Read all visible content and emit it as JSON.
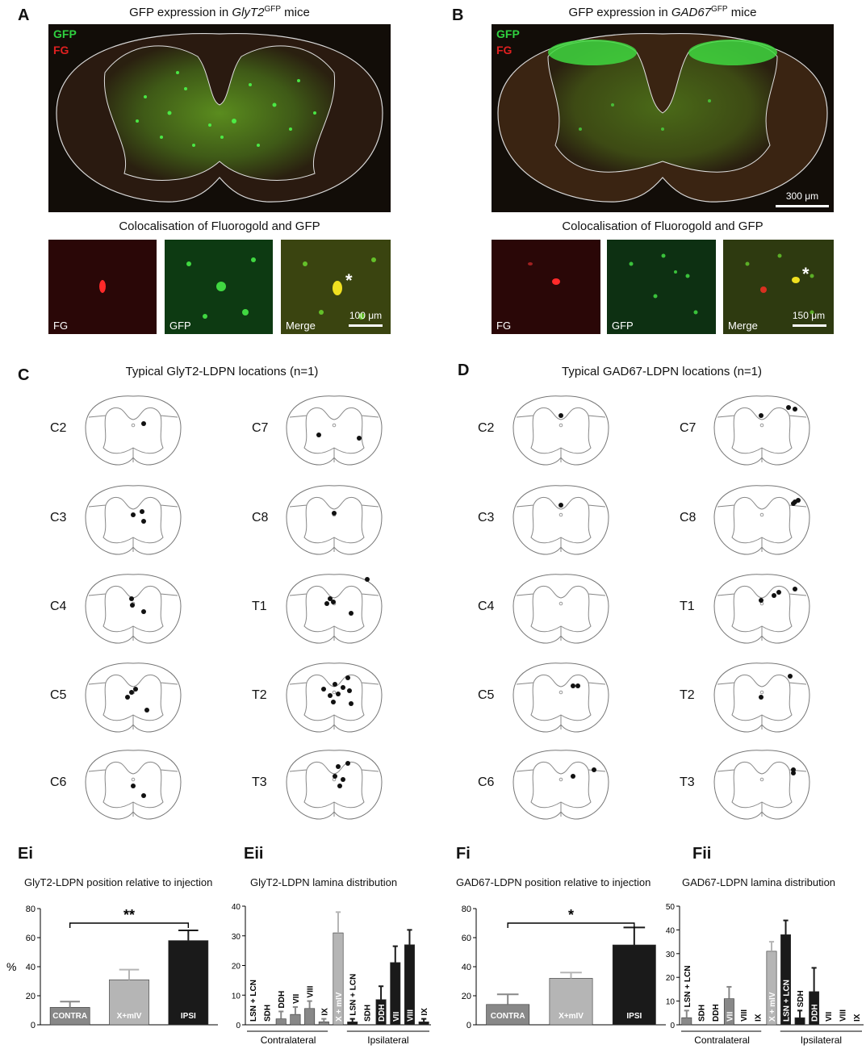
{
  "panels": {
    "A": {
      "label": "A",
      "title_pre": "GFP expression in ",
      "title_gene": "GlyT2",
      "title_sup": "GFP",
      "title_post": " mice",
      "channel_gfp": "GFP",
      "channel_fg": "FG",
      "coloc_title": "Colocalisation of Fluorogold and GFP",
      "insets": [
        "FG",
        "GFP",
        "Merge"
      ],
      "scale": "100 μm",
      "star": "*"
    },
    "B": {
      "label": "B",
      "title_pre": "GFP expression in ",
      "title_gene": "GAD67",
      "title_sup": "GFP",
      "title_post": " mice",
      "channel_gfp": "GFP",
      "channel_fg": "FG",
      "main_scale": "300 μm",
      "coloc_title": "Colocalisation of Fluorogold and GFP",
      "insets": [
        "FG",
        "GFP",
        "Merge"
      ],
      "scale": "150 μm",
      "star": "*"
    },
    "C": {
      "label": "C",
      "title": "Typical GlyT2-LDPN locations (n=1)",
      "left_segments": [
        "C2",
        "C3",
        "C4",
        "C5",
        "C6"
      ],
      "right_segments": [
        "C7",
        "C8",
        "T1",
        "T2",
        "T3"
      ]
    },
    "D": {
      "label": "D",
      "title": "Typical GAD67-LDPN locations (n=1)",
      "left_segments": [
        "C2",
        "C3",
        "C4",
        "C5",
        "C6"
      ],
      "right_segments": [
        "C7",
        "C8",
        "T1",
        "T2",
        "T3"
      ]
    },
    "Ei": {
      "label": "Ei",
      "title": "GlyT2-LDPN position relative to injection",
      "ylabel": "%",
      "significance": "**"
    },
    "Eii": {
      "label": "Eii",
      "title": "GlyT2-LDPN lamina distribution",
      "group_left": "Contralateral",
      "group_right": "Ipsilateral"
    },
    "Fi": {
      "label": "Fi",
      "title": "GAD67-LDPN position relative to injection",
      "significance": "*"
    },
    "Fii": {
      "label": "Fii",
      "title": "GAD67-LDPN lamina distribution",
      "group_left": "Contralateral",
      "group_right": "Ipsilateral"
    }
  },
  "colors": {
    "contra": "#888888",
    "xmiv": "#b5b5b5",
    "ipsi": "#1a1a1a",
    "gfp": "#2fd03f",
    "fg": "#e02020"
  },
  "chart_data": [
    {
      "id": "Ei",
      "type": "bar",
      "categories": [
        "CONTRA",
        "X+mIV",
        "IPSI"
      ],
      "values": [
        12,
        31,
        58
      ],
      "errors": [
        4,
        7,
        7
      ],
      "ylim": [
        0,
        80
      ],
      "yticks": [
        0,
        20,
        40,
        60,
        80
      ],
      "ylabel": "%",
      "colors": [
        "#888888",
        "#b5b5b5",
        "#1a1a1a"
      ]
    },
    {
      "id": "Eii",
      "type": "bar",
      "categories": [
        "LSN + LCN",
        "SDH",
        "DDH",
        "VII",
        "VIII",
        "IX",
        "X + mIV",
        "LSN + LCN",
        "SDH",
        "DDH",
        "VII",
        "VIII",
        "IX"
      ],
      "values": [
        0,
        0,
        2,
        3.5,
        5.5,
        1,
        31,
        1,
        0,
        8.5,
        21,
        27,
        1
      ],
      "errors": [
        0,
        0,
        2.5,
        2.5,
        2.5,
        1,
        7,
        1,
        0,
        4.5,
        5.5,
        5,
        1
      ],
      "ylim": [
        0,
        40
      ],
      "yticks": [
        0,
        10,
        20,
        30,
        40
      ],
      "colors": [
        "#888888",
        "#888888",
        "#888888",
        "#888888",
        "#888888",
        "#888888",
        "#b5b5b5",
        "#1a1a1a",
        "#1a1a1a",
        "#1a1a1a",
        "#1a1a1a",
        "#1a1a1a",
        "#1a1a1a"
      ]
    },
    {
      "id": "Fi",
      "type": "bar",
      "categories": [
        "CONTRA",
        "X+mIV",
        "IPSI"
      ],
      "values": [
        14,
        32,
        55
      ],
      "errors": [
        7,
        4,
        12
      ],
      "ylim": [
        0,
        80
      ],
      "yticks": [
        0,
        20,
        40,
        60,
        80
      ],
      "colors": [
        "#888888",
        "#b5b5b5",
        "#1a1a1a"
      ]
    },
    {
      "id": "Fii",
      "type": "bar",
      "categories": [
        "LSN + LCN",
        "SDH",
        "DDH",
        "VII",
        "VIII",
        "IX",
        "X + mIV",
        "LSN + LCN",
        "SDH",
        "DDH",
        "VII",
        "VIII",
        "IX"
      ],
      "values": [
        3,
        0,
        0,
        11,
        0,
        0,
        31,
        38,
        3,
        14,
        0,
        0,
        0
      ],
      "errors": [
        3,
        0,
        0,
        5,
        0,
        0,
        4,
        6,
        3,
        10,
        0,
        0,
        0
      ],
      "ylim": [
        0,
        50
      ],
      "yticks": [
        0,
        10,
        20,
        30,
        40,
        50
      ],
      "colors": [
        "#888888",
        "#888888",
        "#888888",
        "#888888",
        "#888888",
        "#888888",
        "#b5b5b5",
        "#1a1a1a",
        "#1a1a1a",
        "#1a1a1a",
        "#1a1a1a",
        "#1a1a1a",
        "#1a1a1a"
      ]
    }
  ]
}
